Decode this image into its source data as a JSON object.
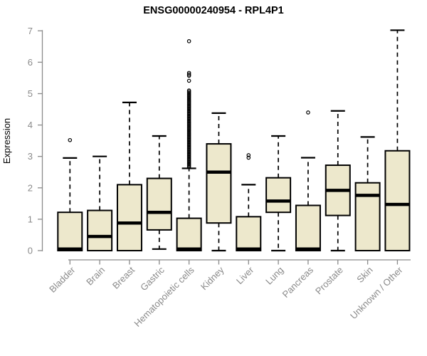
{
  "chart_data": {
    "type": "boxplot",
    "title": "ENSG00000240954 - RPL4P1",
    "ylabel": "Expression",
    "ylim": [
      0,
      7
    ],
    "yticks": [
      0,
      1,
      2,
      3,
      4,
      5,
      6,
      7
    ],
    "grid": false,
    "legend": "none",
    "categories": [
      "Bladder",
      "Brain",
      "Breast",
      "Gastric",
      "Hematopoietic cells",
      "Kidney",
      "Liver",
      "Lung",
      "Pancreas",
      "Prostate",
      "Skin",
      "Unknown / Other"
    ],
    "series": [
      {
        "name": "Bladder",
        "low": 0,
        "q1": 0,
        "median": 0.05,
        "q3": 1.22,
        "high": 2.95,
        "outliers": [
          3.52
        ]
      },
      {
        "name": "Brain",
        "low": 0,
        "q1": 0,
        "median": 0.45,
        "q3": 1.28,
        "high": 3.0,
        "outliers": []
      },
      {
        "name": "Breast",
        "low": 0,
        "q1": 0,
        "median": 0.88,
        "q3": 2.1,
        "high": 4.72,
        "outliers": []
      },
      {
        "name": "Gastric",
        "low": 0.05,
        "q1": 0.66,
        "median": 1.22,
        "q3": 2.3,
        "high": 3.65,
        "outliers": []
      },
      {
        "name": "Hematopoietic cells",
        "low": 0,
        "q1": 0,
        "median": 0.05,
        "q3": 1.03,
        "high": 2.62,
        "outliers": [
          2.66,
          2.7,
          2.74,
          2.78,
          2.82,
          2.86,
          2.9,
          2.94,
          2.98,
          3.02,
          3.06,
          3.1,
          3.14,
          3.18,
          3.22,
          3.26,
          3.3,
          3.34,
          3.38,
          3.42,
          3.46,
          3.5,
          3.54,
          3.58,
          3.62,
          3.66,
          3.7,
          3.74,
          3.78,
          3.82,
          3.86,
          3.9,
          3.94,
          3.98,
          4.02,
          4.06,
          4.1,
          4.14,
          4.18,
          4.22,
          4.26,
          4.3,
          4.34,
          4.38,
          4.42,
          4.46,
          4.5,
          4.54,
          4.58,
          4.62,
          4.66,
          4.7,
          4.74,
          4.78,
          4.82,
          4.86,
          4.9,
          4.94,
          4.98,
          5.02,
          5.06,
          5.1,
          5.41,
          5.57,
          5.61,
          5.66,
          6.67
        ]
      },
      {
        "name": "Kidney",
        "low": 0,
        "q1": 0.88,
        "median": 2.5,
        "q3": 3.4,
        "high": 4.38,
        "outliers": []
      },
      {
        "name": "Liver",
        "low": 0,
        "q1": 0,
        "median": 0.05,
        "q3": 1.08,
        "high": 2.1,
        "outliers": [
          2.96,
          3.04
        ]
      },
      {
        "name": "Lung",
        "low": 0,
        "q1": 1.22,
        "median": 1.58,
        "q3": 2.32,
        "high": 3.65,
        "outliers": []
      },
      {
        "name": "Pancreas",
        "low": 0,
        "q1": 0,
        "median": 0.05,
        "q3": 1.44,
        "high": 2.96,
        "outliers": [
          4.4
        ]
      },
      {
        "name": "Prostate",
        "low": 0,
        "q1": 1.12,
        "median": 1.92,
        "q3": 2.72,
        "high": 4.45,
        "outliers": []
      },
      {
        "name": "Skin",
        "low": 0,
        "q1": 0,
        "median": 1.76,
        "q3": 2.16,
        "high": 3.62,
        "outliers": []
      },
      {
        "name": "Unknown / Other",
        "low": 0,
        "q1": 0,
        "median": 1.47,
        "q3": 3.18,
        "high": 7.02,
        "outliers": []
      }
    ]
  },
  "colors": {
    "box_fill": "#EDE8CC",
    "box_stroke": "#000000",
    "median_color": "#000000",
    "whisker_color": "#000000",
    "axis_color": "#8A8A8A",
    "text_color": "#8A8A8A",
    "title_color": "#000000"
  }
}
